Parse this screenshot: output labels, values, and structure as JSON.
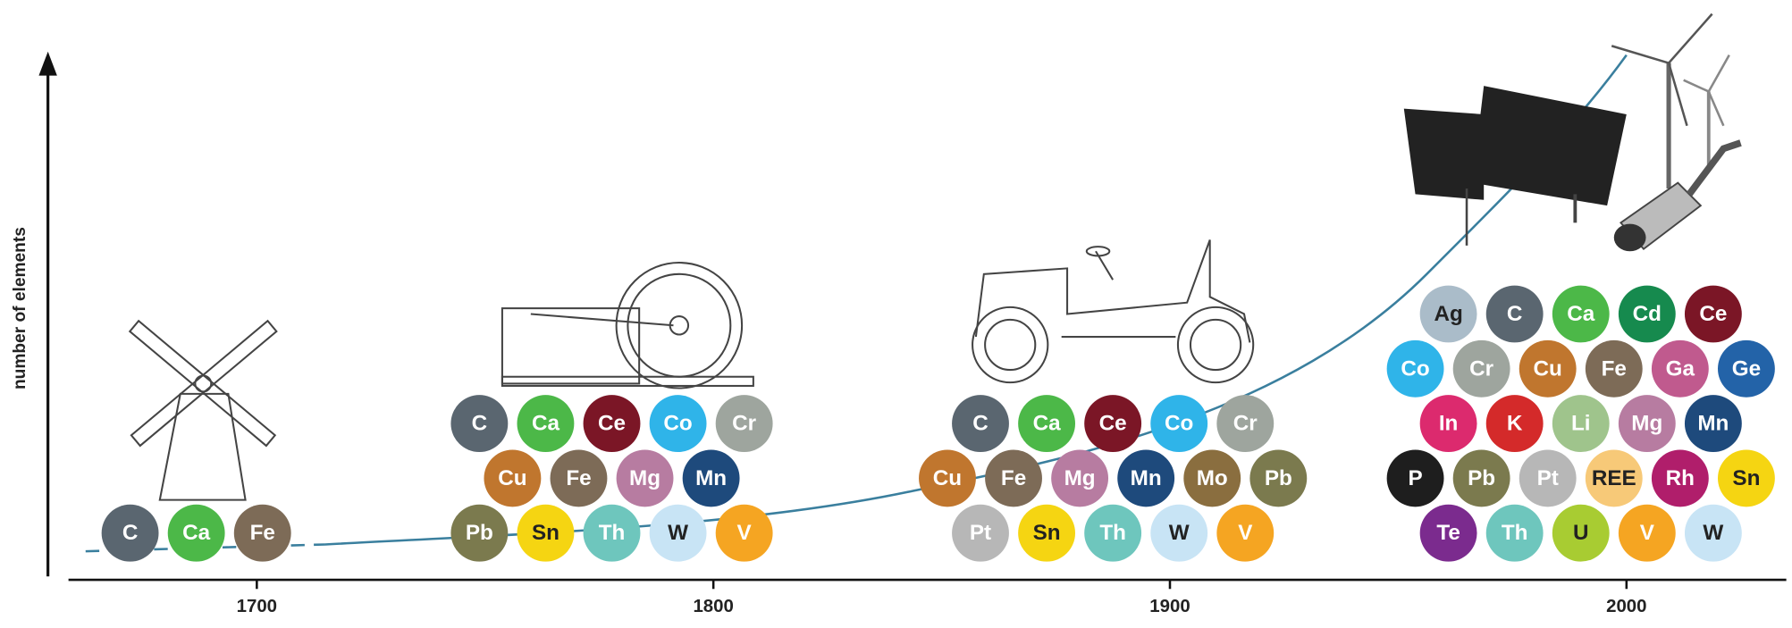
{
  "axis_label": "number of elements",
  "years": [
    "1700",
    "1800",
    "1900",
    "2000"
  ],
  "groups": [
    {
      "rows": [
        [
          {
            "symbol": "C",
            "color": "#5a6670",
            "text_color": "#ffffff"
          },
          {
            "symbol": "Ca",
            "color": "#4cb848",
            "text_color": "#ffffff"
          },
          {
            "symbol": "Fe",
            "color": "#7d6b57",
            "text_color": "#ffffff"
          }
        ]
      ]
    },
    {
      "rows": [
        [
          {
            "symbol": "C",
            "color": "#5a6670",
            "text_color": "#ffffff"
          },
          {
            "symbol": "Ca",
            "color": "#4cb848",
            "text_color": "#ffffff"
          },
          {
            "symbol": "Ce",
            "color": "#7b1626",
            "text_color": "#ffffff"
          },
          {
            "symbol": "Co",
            "color": "#2fb4e9",
            "text_color": "#ffffff"
          },
          {
            "symbol": "Cr",
            "color": "#9ea59e",
            "text_color": "#ffffff"
          }
        ],
        [
          {
            "symbol": "Cu",
            "color": "#c0762e",
            "text_color": "#ffffff"
          },
          {
            "symbol": "Fe",
            "color": "#7d6b57",
            "text_color": "#ffffff"
          },
          {
            "symbol": "Mg",
            "color": "#b77ca1",
            "text_color": "#ffffff"
          },
          {
            "symbol": "Mn",
            "color": "#1e4a7c",
            "text_color": "#ffffff"
          }
        ],
        [
          {
            "symbol": "Pb",
            "color": "#7b7a4e",
            "text_color": "#ffffff"
          },
          {
            "symbol": "Sn",
            "color": "#f5d512",
            "text_color": "#222222"
          },
          {
            "symbol": "Th",
            "color": "#6ec6bd",
            "text_color": "#ffffff"
          },
          {
            "symbol": "W",
            "color": "#c8e4f5",
            "text_color": "#222222"
          },
          {
            "symbol": "V",
            "color": "#f5a522",
            "text_color": "#ffffff"
          }
        ]
      ]
    },
    {
      "rows": [
        [
          {
            "symbol": "C",
            "color": "#5a6670",
            "text_color": "#ffffff"
          },
          {
            "symbol": "Ca",
            "color": "#4cb848",
            "text_color": "#ffffff"
          },
          {
            "symbol": "Ce",
            "color": "#7b1626",
            "text_color": "#ffffff"
          },
          {
            "symbol": "Co",
            "color": "#2fb4e9",
            "text_color": "#ffffff"
          },
          {
            "symbol": "Cr",
            "color": "#9ea59e",
            "text_color": "#ffffff"
          }
        ],
        [
          {
            "symbol": "Cu",
            "color": "#c0762e",
            "text_color": "#ffffff"
          },
          {
            "symbol": "Fe",
            "color": "#7d6b57",
            "text_color": "#ffffff"
          },
          {
            "symbol": "Mg",
            "color": "#b77ca1",
            "text_color": "#ffffff"
          },
          {
            "symbol": "Mn",
            "color": "#1e4a7c",
            "text_color": "#ffffff"
          },
          {
            "symbol": "Mo",
            "color": "#8a6e3f",
            "text_color": "#ffffff"
          },
          {
            "symbol": "Pb",
            "color": "#7b7a4e",
            "text_color": "#ffffff"
          }
        ],
        [
          {
            "symbol": "Pt",
            "color": "#b7b7b7",
            "text_color": "#ffffff"
          },
          {
            "symbol": "Sn",
            "color": "#f5d512",
            "text_color": "#222222"
          },
          {
            "symbol": "Th",
            "color": "#6ec6bd",
            "text_color": "#ffffff"
          },
          {
            "symbol": "W",
            "color": "#c8e4f5",
            "text_color": "#222222"
          },
          {
            "symbol": "V",
            "color": "#f5a522",
            "text_color": "#ffffff"
          }
        ]
      ]
    },
    {
      "rows": [
        [
          {
            "symbol": "Ag",
            "color": "#aabcc9",
            "text_color": "#222222"
          },
          {
            "symbol": "C",
            "color": "#5a6670",
            "text_color": "#ffffff"
          },
          {
            "symbol": "Ca",
            "color": "#4cb848",
            "text_color": "#ffffff"
          },
          {
            "symbol": "Cd",
            "color": "#168a4e",
            "text_color": "#ffffff"
          },
          {
            "symbol": "Ce",
            "color": "#7b1626",
            "text_color": "#ffffff"
          }
        ],
        [
          {
            "symbol": "Co",
            "color": "#2fb4e9",
            "text_color": "#ffffff"
          },
          {
            "symbol": "Cr",
            "color": "#9ea59e",
            "text_color": "#ffffff"
          },
          {
            "symbol": "Cu",
            "color": "#c0762e",
            "text_color": "#ffffff"
          },
          {
            "symbol": "Fe",
            "color": "#7d6b57",
            "text_color": "#ffffff"
          },
          {
            "symbol": "Ga",
            "color": "#c05a8e",
            "text_color": "#ffffff"
          },
          {
            "symbol": "Ge",
            "color": "#2363a8",
            "text_color": "#ffffff"
          }
        ],
        [
          {
            "symbol": "In",
            "color": "#dc2a6e",
            "text_color": "#ffffff"
          },
          {
            "symbol": "K",
            "color": "#d42a2a",
            "text_color": "#ffffff"
          },
          {
            "symbol": "Li",
            "color": "#9fc48c",
            "text_color": "#ffffff"
          },
          {
            "symbol": "Mg",
            "color": "#b77ca1",
            "text_color": "#ffffff"
          },
          {
            "symbol": "Mn",
            "color": "#1e4a7c",
            "text_color": "#ffffff"
          }
        ],
        [
          {
            "symbol": "P",
            "color": "#1e1e1e",
            "text_color": "#ffffff"
          },
          {
            "symbol": "Pb",
            "color": "#7b7a4e",
            "text_color": "#ffffff"
          },
          {
            "symbol": "Pt",
            "color": "#b7b7b7",
            "text_color": "#ffffff"
          },
          {
            "symbol": "REE",
            "color": "#f7c978",
            "text_color": "#222222"
          },
          {
            "symbol": "Rh",
            "color": "#b01e6b",
            "text_color": "#ffffff"
          },
          {
            "symbol": "Sn",
            "color": "#f5d512",
            "text_color": "#222222"
          }
        ],
        [
          {
            "symbol": "Te",
            "color": "#7b2b8e",
            "text_color": "#ffffff"
          },
          {
            "symbol": "Th",
            "color": "#6ec6bd",
            "text_color": "#ffffff"
          },
          {
            "symbol": "U",
            "color": "#a8cc32",
            "text_color": "#222222"
          },
          {
            "symbol": "V",
            "color": "#f5a522",
            "text_color": "#ffffff"
          },
          {
            "symbol": "W",
            "color": "#c8e4f5",
            "text_color": "#222222"
          }
        ]
      ]
    }
  ]
}
